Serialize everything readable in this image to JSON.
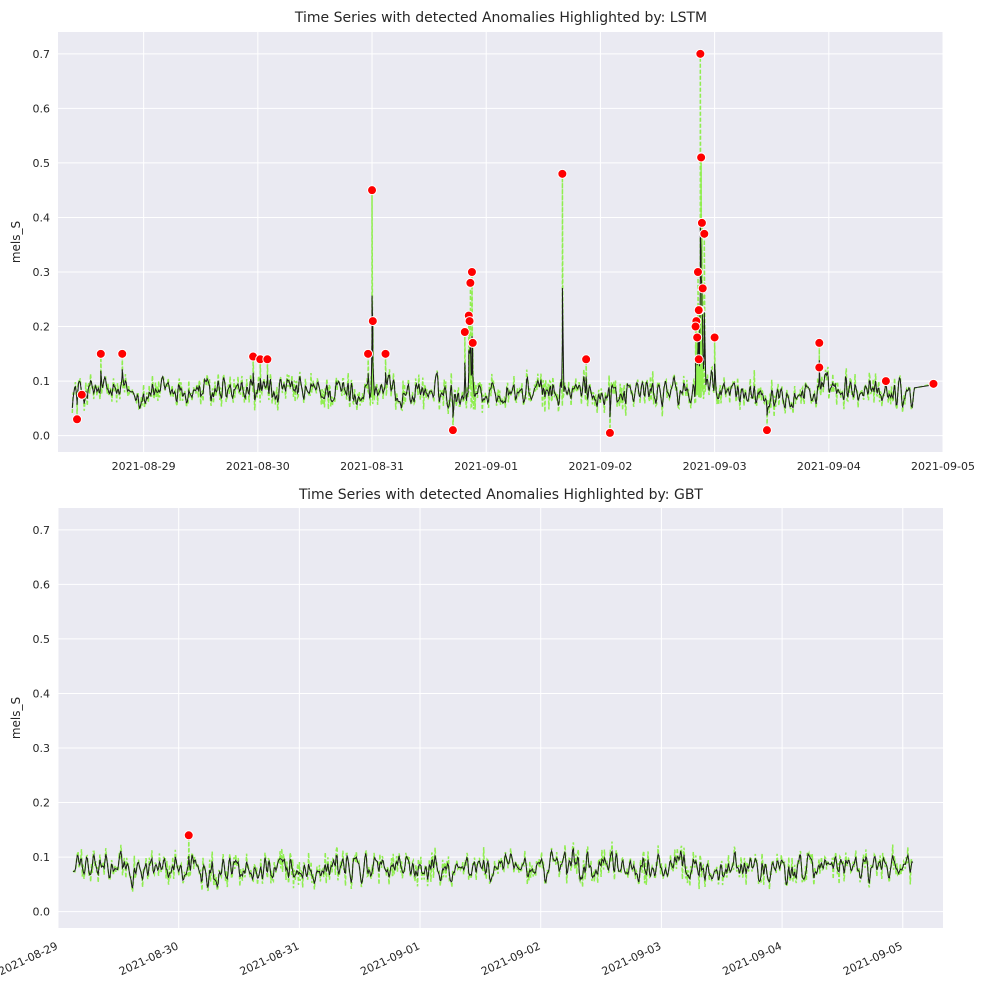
{
  "chart_data": [
    {
      "type": "line",
      "title": "Time Series with detected Anomalies Highlighted by: LSTM",
      "xlabel": "",
      "ylabel": "mels_S",
      "xlim": [
        "2021-08-28 06:00",
        "2021-09-05 00:00"
      ],
      "ylim": [
        -0.03,
        0.74
      ],
      "x_ticks": [
        "2021-08-29",
        "2021-08-30",
        "2021-08-31",
        "2021-09-01",
        "2021-09-02",
        "2021-09-03",
        "2021-09-04",
        "2021-09-05"
      ],
      "y_ticks": [
        0.0,
        0.1,
        0.2,
        0.3,
        0.4,
        0.5,
        0.6,
        0.7
      ],
      "x_tick_rotation": 0,
      "grid": true,
      "legend": "none",
      "colors": {
        "observed": "#90ee50",
        "fitted": "#1a1a1a",
        "anomaly": "#ff0000"
      },
      "series": [],
      "anomaly_points": [
        {
          "x": "2021-09-02 21:00",
          "y": 0.7
        },
        {
          "x": "2021-09-02 21:10",
          "y": 0.51
        },
        {
          "x": "2021-08-31 00:00",
          "y": 0.45
        },
        {
          "x": "2021-09-01 16:00",
          "y": 0.48
        },
        {
          "x": "2021-09-02 21:20",
          "y": 0.39
        },
        {
          "x": "2021-09-02 21:50",
          "y": 0.37
        },
        {
          "x": "2021-08-31 21:00",
          "y": 0.3
        },
        {
          "x": "2021-09-02 20:30",
          "y": 0.3
        },
        {
          "x": "2021-08-31 20:40",
          "y": 0.28
        },
        {
          "x": "2021-09-02 21:30",
          "y": 0.27
        },
        {
          "x": "2021-09-02 20:50",
          "y": 0.23
        },
        {
          "x": "2021-09-02 20:40",
          "y": 0.23
        },
        {
          "x": "2021-08-31 20:20",
          "y": 0.22
        },
        {
          "x": "2021-08-31 00:10",
          "y": 0.21
        },
        {
          "x": "2021-08-31 20:30",
          "y": 0.21
        },
        {
          "x": "2021-09-02 20:10",
          "y": 0.21
        },
        {
          "x": "2021-09-02 20:00",
          "y": 0.2
        },
        {
          "x": "2021-08-31 19:30",
          "y": 0.19
        },
        {
          "x": "2021-09-02 20:20",
          "y": 0.18
        },
        {
          "x": "2021-09-03 00:00",
          "y": 0.18
        },
        {
          "x": "2021-09-03 22:00",
          "y": 0.17
        },
        {
          "x": "2021-08-31 21:10",
          "y": 0.17
        },
        {
          "x": "2021-08-30 23:10",
          "y": 0.15
        },
        {
          "x": "2021-08-31 02:50",
          "y": 0.15
        },
        {
          "x": "2021-09-02 20:40",
          "y": 0.14
        },
        {
          "x": "2021-08-28 15:00",
          "y": 0.15
        },
        {
          "x": "2021-08-28 19:30",
          "y": 0.15
        },
        {
          "x": "2021-08-29 23:00",
          "y": 0.145
        },
        {
          "x": "2021-08-30 00:30",
          "y": 0.14
        },
        {
          "x": "2021-08-30 02:00",
          "y": 0.14
        },
        {
          "x": "2021-09-01 21:00",
          "y": 0.14
        },
        {
          "x": "2021-09-03 22:00",
          "y": 0.125
        },
        {
          "x": "2021-08-28 10:00",
          "y": 0.03
        },
        {
          "x": "2021-08-28 11:00",
          "y": 0.075
        },
        {
          "x": "2021-08-31 17:00",
          "y": 0.01
        },
        {
          "x": "2021-09-02 02:00",
          "y": 0.005
        },
        {
          "x": "2021-09-03 11:00",
          "y": 0.01
        },
        {
          "x": "2021-09-04 12:00",
          "y": 0.1
        },
        {
          "x": "2021-09-04 22:00",
          "y": 0.095
        }
      ]
    },
    {
      "type": "line",
      "title": "Time Series with detected Anomalies Highlighted by: GBT",
      "xlabel": "",
      "ylabel": "mels_S",
      "xlim": [
        "2021-08-29 00:00",
        "2021-09-05 08:00"
      ],
      "ylim": [
        -0.03,
        0.74
      ],
      "x_ticks": [
        "2021-08-29",
        "2021-08-30",
        "2021-08-31",
        "2021-09-01",
        "2021-09-02",
        "2021-09-03",
        "2021-09-04",
        "2021-09-05"
      ],
      "y_ticks": [
        0.0,
        0.1,
        0.2,
        0.3,
        0.4,
        0.5,
        0.6,
        0.7
      ],
      "x_tick_rotation": 25,
      "grid": true,
      "legend": "none",
      "colors": {
        "observed": "#90ee50",
        "fitted": "#1a1a1a",
        "anomaly": "#ff0000"
      },
      "series": [],
      "anomaly_points": [
        {
          "x": "2021-08-30 02:00",
          "y": 0.14
        }
      ]
    }
  ]
}
